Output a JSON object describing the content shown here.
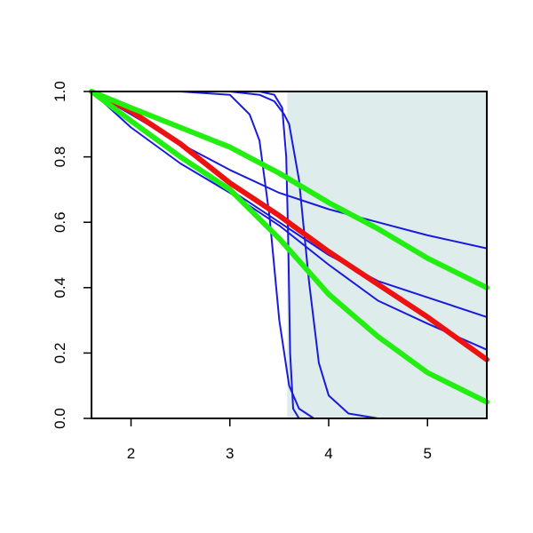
{
  "chart_data": {
    "type": "line",
    "title": "",
    "xlabel": "",
    "ylabel": "",
    "xlim": [
      1.6,
      5.6
    ],
    "ylim": [
      0.0,
      1.0
    ],
    "x_ticks": [
      2,
      3,
      4,
      5
    ],
    "x_tick_labels": [
      "2",
      "3",
      "4",
      "5"
    ],
    "y_ticks": [
      0.0,
      0.2,
      0.4,
      0.6,
      0.8,
      1.0
    ],
    "y_tick_labels": [
      "0.0",
      "0.2",
      "0.4",
      "0.6",
      "0.8",
      "1.0"
    ],
    "grid": false,
    "legend": "none",
    "shaded_region": {
      "x_from": 3.58,
      "x_to": 5.6,
      "color": "#deeceb"
    },
    "series": [
      {
        "color": "#1a1adc",
        "width": "thin",
        "points": [
          [
            1.6,
            1.0
          ],
          [
            2.0,
            0.93
          ],
          [
            2.5,
            0.84
          ],
          [
            3.0,
            0.76
          ],
          [
            3.5,
            0.69
          ],
          [
            4.0,
            0.64
          ],
          [
            4.5,
            0.6
          ],
          [
            5.0,
            0.56
          ],
          [
            5.6,
            0.52
          ]
        ]
      },
      {
        "color": "#1a1adc",
        "width": "thin",
        "points": [
          [
            1.6,
            1.0
          ],
          [
            2.0,
            0.91
          ],
          [
            2.5,
            0.8
          ],
          [
            3.0,
            0.7
          ],
          [
            3.5,
            0.6
          ],
          [
            4.0,
            0.5
          ],
          [
            4.5,
            0.42
          ],
          [
            5.0,
            0.37
          ],
          [
            5.6,
            0.31
          ]
        ]
      },
      {
        "color": "#1a1adc",
        "width": "thin",
        "points": [
          [
            1.6,
            1.0
          ],
          [
            2.0,
            0.89
          ],
          [
            2.5,
            0.78
          ],
          [
            3.0,
            0.69
          ],
          [
            3.5,
            0.59
          ],
          [
            4.0,
            0.47
          ],
          [
            4.5,
            0.36
          ],
          [
            5.0,
            0.29
          ],
          [
            5.6,
            0.21
          ]
        ]
      },
      {
        "color": "#1a1adc",
        "width": "thin",
        "points": [
          [
            1.6,
            1.0
          ],
          [
            2.5,
            1.0
          ],
          [
            3.0,
            0.99
          ],
          [
            3.2,
            0.93
          ],
          [
            3.3,
            0.85
          ],
          [
            3.4,
            0.62
          ],
          [
            3.5,
            0.3
          ],
          [
            3.6,
            0.1
          ],
          [
            3.7,
            0.03
          ],
          [
            3.85,
            0.0
          ],
          [
            5.6,
            0.0
          ]
        ]
      },
      {
        "color": "#1a1adc",
        "width": "thin",
        "points": [
          [
            1.6,
            1.0
          ],
          [
            3.0,
            1.0
          ],
          [
            3.3,
            1.0
          ],
          [
            3.45,
            0.99
          ],
          [
            3.53,
            0.95
          ],
          [
            3.57,
            0.8
          ],
          [
            3.59,
            0.55
          ],
          [
            3.61,
            0.2
          ],
          [
            3.64,
            0.03
          ],
          [
            3.7,
            0.0
          ],
          [
            5.6,
            0.0
          ]
        ]
      },
      {
        "color": "#1a1adc",
        "width": "thin",
        "points": [
          [
            1.6,
            1.0
          ],
          [
            3.0,
            1.0
          ],
          [
            3.3,
            0.99
          ],
          [
            3.45,
            0.97
          ],
          [
            3.55,
            0.93
          ],
          [
            3.6,
            0.9
          ],
          [
            3.7,
            0.73
          ],
          [
            3.8,
            0.42
          ],
          [
            3.9,
            0.17
          ],
          [
            4.0,
            0.07
          ],
          [
            4.2,
            0.015
          ],
          [
            4.5,
            0.0
          ],
          [
            5.6,
            0.0
          ]
        ]
      },
      {
        "color": "#ee1111",
        "width": "thick",
        "points": [
          [
            1.6,
            1.0
          ],
          [
            2.0,
            0.94
          ],
          [
            2.5,
            0.84
          ],
          [
            3.0,
            0.72
          ],
          [
            3.5,
            0.62
          ],
          [
            4.0,
            0.51
          ],
          [
            4.5,
            0.41
          ],
          [
            5.0,
            0.31
          ],
          [
            5.6,
            0.18
          ]
        ]
      },
      {
        "color": "#22ee11",
        "width": "thick",
        "points": [
          [
            1.6,
            1.0
          ],
          [
            2.0,
            0.95
          ],
          [
            2.5,
            0.89
          ],
          [
            3.0,
            0.83
          ],
          [
            3.5,
            0.75
          ],
          [
            4.0,
            0.66
          ],
          [
            4.5,
            0.58
          ],
          [
            5.0,
            0.49
          ],
          [
            5.6,
            0.4
          ]
        ]
      },
      {
        "color": "#22ee11",
        "width": "thick",
        "points": [
          [
            1.6,
            1.0
          ],
          [
            2.0,
            0.91
          ],
          [
            2.5,
            0.8
          ],
          [
            3.0,
            0.7
          ],
          [
            3.5,
            0.55
          ],
          [
            4.0,
            0.38
          ],
          [
            4.5,
            0.25
          ],
          [
            5.0,
            0.14
          ],
          [
            5.6,
            0.05
          ]
        ]
      }
    ]
  }
}
